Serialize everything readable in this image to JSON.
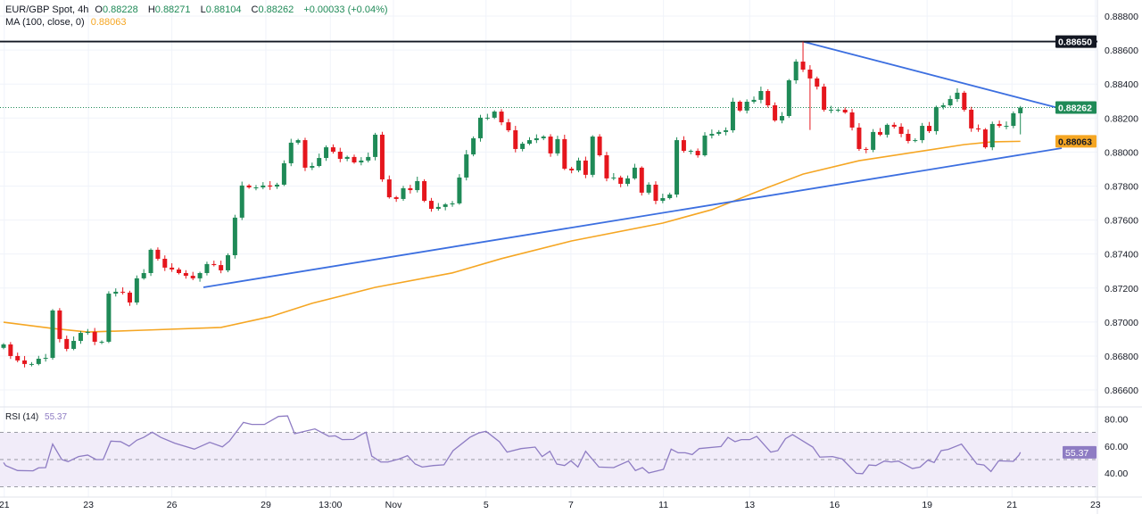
{
  "header": {
    "symbol": "EUR/GBP Spot, 4h",
    "open_label": "O",
    "open": "0.88228",
    "high_label": "H",
    "high": "0.88271",
    "low_label": "L",
    "low": "0.88104",
    "close_label": "C",
    "close": "0.88262",
    "change": "+0.00033 (+0.04%)",
    "ma_label": "MA (100, close, 0)",
    "ma_value": "0.88063",
    "rsi_label": "RSI (14)",
    "rsi_value": "55.37"
  },
  "colors": {
    "up": "#1f8a57",
    "down": "#e5161d",
    "ma": "#f5a623",
    "trendline": "#3c6fe0",
    "resistance": "#131722",
    "rsi": "#8e7cc3",
    "rsi_band": "#f1ecf9",
    "last_price": "#1f8a57"
  },
  "chart_data": [
    {
      "type": "candlestick",
      "title": "EUR/GBP Spot, 4h",
      "ylim": [
        0.865,
        0.8891
      ],
      "y_ticks": [
        "0.88800",
        "0.88600",
        "0.88400",
        "0.88200",
        "0.88000",
        "0.87800",
        "0.87600",
        "0.87400",
        "0.87200",
        "0.87000",
        "0.86800",
        "0.86600"
      ],
      "x_ticks": [
        {
          "label": "21",
          "index": 0.1
        },
        {
          "label": "23",
          "index": 12.1
        },
        {
          "label": "26",
          "index": 24.0
        },
        {
          "label": "29",
          "index": 37.4
        },
        {
          "label": "13:00",
          "index": 46.6
        },
        {
          "label": "Nov",
          "index": 55.6
        },
        {
          "label": "5",
          "index": 68.8
        },
        {
          "label": "7",
          "index": 80.9
        },
        {
          "label": "11",
          "index": 94.1
        },
        {
          "label": "13",
          "index": 106.4
        },
        {
          "label": "16",
          "index": 118.5
        },
        {
          "label": "19",
          "index": 131.7
        },
        {
          "label": "21",
          "index": 143.8
        },
        {
          "label": "23",
          "index": 155.7
        }
      ],
      "grid": true,
      "close": [
        0.86868,
        0.868,
        0.86774,
        0.86753,
        0.86753,
        0.86784,
        0.86789,
        0.87068,
        0.869,
        0.86842,
        0.86889,
        0.86936,
        0.86942,
        0.86884,
        0.86884,
        0.87167,
        0.87178,
        0.87173,
        0.87115,
        0.87257,
        0.87288,
        0.87425,
        0.87372,
        0.8732,
        0.87309,
        0.87288,
        0.87272,
        0.87257,
        0.87288,
        0.87341,
        0.87335,
        0.87304,
        0.87393,
        0.87614,
        0.87803,
        0.87792,
        0.87792,
        0.87803,
        0.87797,
        0.87808,
        0.87934,
        0.88055,
        0.8807,
        0.87908,
        0.87918,
        0.87965,
        0.88028,
        0.88002,
        0.8796,
        0.87971,
        0.87939,
        0.8795,
        0.87971,
        0.88102,
        0.87839,
        0.87734,
        0.87724,
        0.87787,
        0.87776,
        0.87829,
        0.87713,
        0.87666,
        0.87677,
        0.87692,
        0.87698,
        0.8785,
        0.87986,
        0.88081,
        0.88202,
        0.88202,
        0.88238,
        0.88175,
        0.88128,
        0.88018,
        0.88049,
        0.8807,
        0.88081,
        0.88091,
        0.87992,
        0.88076,
        0.87902,
        0.87892,
        0.8795,
        0.87866,
        0.88091,
        0.87981,
        0.87845,
        0.8785,
        0.87813,
        0.87845,
        0.87908,
        0.87761,
        0.87808,
        0.87713,
        0.87729,
        0.8775,
        0.8807,
        0.88007,
        0.88007,
        0.87981,
        0.88097,
        0.88107,
        0.88118,
        0.88128,
        0.88296,
        0.88244,
        0.88296,
        0.88307,
        0.88359,
        0.88275,
        0.88186,
        0.88212,
        0.88422,
        0.88532,
        0.88485,
        0.88433,
        0.88385,
        0.88249,
        0.88249,
        0.88249,
        0.88233,
        0.88144,
        0.88018,
        0.88013,
        0.88118,
        0.88102,
        0.8816,
        0.88149,
        0.88107,
        0.88065,
        0.8807,
        0.88154,
        0.88123,
        0.88265,
        0.88275,
        0.88312,
        0.88349,
        0.88249,
        0.88139,
        0.88133,
        0.88028,
        0.88165,
        0.88154,
        0.88154,
        0.88228,
        0.88262
      ],
      "last_candle": {
        "open": 0.88228,
        "high": 0.88271,
        "low": 0.88104,
        "close": 0.88262
      },
      "extremes": [
        {
          "index": 114,
          "high": 0.8865
        },
        {
          "index": 115,
          "low": 0.8813
        }
      ],
      "ma_100": [
        [
          0,
          0.86999
        ],
        [
          7,
          0.86962
        ],
        [
          12,
          0.86941
        ],
        [
          20,
          0.86952
        ],
        [
          31,
          0.86968
        ],
        [
          38,
          0.87031
        ],
        [
          44,
          0.8711
        ],
        [
          53,
          0.87204
        ],
        [
          64,
          0.87289
        ],
        [
          71,
          0.87373
        ],
        [
          81,
          0.87477
        ],
        [
          94,
          0.87582
        ],
        [
          101,
          0.87661
        ],
        [
          109,
          0.87792
        ],
        [
          114,
          0.8787
        ],
        [
          122,
          0.87949
        ],
        [
          132,
          0.88012
        ],
        [
          137,
          0.88044
        ],
        [
          141,
          0.8806
        ],
        [
          145,
          0.88063
        ]
      ],
      "horizontal_level": {
        "value": 0.8865,
        "label": "0.88650"
      },
      "trendlines": [
        {
          "from": [
            114,
            0.8865
          ],
          "to": [
            150.9,
            0.88254
          ]
        },
        {
          "from": [
            28.5,
            0.87204
          ],
          "to": [
            150.9,
            0.88023
          ]
        }
      ],
      "price_labels": [
        {
          "value": 0.8865,
          "label": "0.88650",
          "kind": "resistance"
        },
        {
          "value": 0.88262,
          "label": "0.88262",
          "kind": "last_price"
        },
        {
          "value": 0.88063,
          "label": "0.88063",
          "kind": "ma"
        }
      ]
    },
    {
      "type": "line",
      "title": "RSI (14)",
      "ylim": [
        25,
        85
      ],
      "y_ticks": [
        "80.00",
        "60.00",
        "40.00"
      ],
      "bands": {
        "upper": 70,
        "middle": 50,
        "lower": 30
      },
      "last_label": "55.37",
      "rsi": [
        [
          0,
          47.8
        ],
        [
          0.3,
          45.6
        ],
        [
          2,
          41.9
        ],
        [
          4.2,
          41.7
        ],
        [
          5,
          43.9
        ],
        [
          6,
          44.1
        ],
        [
          7,
          61.4
        ],
        [
          8.3,
          50
        ],
        [
          9.2,
          48.5
        ],
        [
          10.7,
          52.2
        ],
        [
          12,
          53.3
        ],
        [
          13.2,
          50
        ],
        [
          14.2,
          50
        ],
        [
          15.3,
          63.6
        ],
        [
          16.7,
          63.2
        ],
        [
          17.9,
          59.9
        ],
        [
          19,
          64.3
        ],
        [
          20,
          66.4
        ],
        [
          21.2,
          70.2
        ],
        [
          22.4,
          66.4
        ],
        [
          24.4,
          62.1
        ],
        [
          27.2,
          57.7
        ],
        [
          29.4,
          62.7
        ],
        [
          31.2,
          59.4
        ],
        [
          32.2,
          63.6
        ],
        [
          34.2,
          77.4
        ],
        [
          35.4,
          75.9
        ],
        [
          37.2,
          75.9
        ],
        [
          39.2,
          81.8
        ],
        [
          40.5,
          82.2
        ],
        [
          41.5,
          69.1
        ],
        [
          44.4,
          72.6
        ],
        [
          46.4,
          67.1
        ],
        [
          47.3,
          67.5
        ],
        [
          48.3,
          64.7
        ],
        [
          49.9,
          64.9
        ],
        [
          51.1,
          68.6
        ],
        [
          51.7,
          70.2
        ],
        [
          52.5,
          52.6
        ],
        [
          53.8,
          48.2
        ],
        [
          54.8,
          48.2
        ],
        [
          56.4,
          50.4
        ],
        [
          57.6,
          52.9
        ],
        [
          58.7,
          46.7
        ],
        [
          59.7,
          44.5
        ],
        [
          61.3,
          45.6
        ],
        [
          62.8,
          46.1
        ],
        [
          64.1,
          56.6
        ],
        [
          66.5,
          66.4
        ],
        [
          67.8,
          69.7
        ],
        [
          68.8,
          70.8
        ],
        [
          70.7,
          63.2
        ],
        [
          71.8,
          55.5
        ],
        [
          73.8,
          58.1
        ],
        [
          75.8,
          59.2
        ],
        [
          76.8,
          52.2
        ],
        [
          77.9,
          56.1
        ],
        [
          78.9,
          46.7
        ],
        [
          80,
          45.6
        ],
        [
          80.9,
          49.1
        ],
        [
          81.9,
          44.5
        ],
        [
          83,
          56.1
        ],
        [
          84.9,
          44.5
        ],
        [
          87,
          44.1
        ],
        [
          89.1,
          48.9
        ],
        [
          90.1,
          41.9
        ],
        [
          91.1,
          44.1
        ],
        [
          92,
          40.1
        ],
        [
          94.1,
          42.8
        ],
        [
          95.2,
          57.7
        ],
        [
          96.2,
          55.0
        ],
        [
          97.2,
          55.0
        ],
        [
          98.2,
          53.7
        ],
        [
          99.2,
          58.1
        ],
        [
          102.3,
          59.6
        ],
        [
          103.3,
          66.4
        ],
        [
          104.3,
          63.2
        ],
        [
          105.2,
          64.7
        ],
        [
          106.4,
          64.7
        ],
        [
          107.4,
          67.1
        ],
        [
          109.4,
          55.5
        ],
        [
          110.4,
          56.6
        ],
        [
          111.5,
          65.4
        ],
        [
          112.5,
          68.4
        ],
        [
          115.4,
          59.2
        ],
        [
          116.4,
          51.8
        ],
        [
          118.2,
          52.2
        ],
        [
          119.6,
          50.4
        ],
        [
          121.6,
          39.9
        ],
        [
          122.5,
          39.6
        ],
        [
          123.4,
          46.0
        ],
        [
          124.4,
          45.6
        ],
        [
          125.6,
          48.9
        ],
        [
          126.6,
          48.2
        ],
        [
          127.6,
          48.9
        ],
        [
          129.6,
          43.4
        ],
        [
          130.7,
          44.5
        ],
        [
          131.8,
          49.6
        ],
        [
          132.7,
          47.8
        ],
        [
          133.7,
          56.6
        ],
        [
          134.7,
          57.5
        ],
        [
          136.6,
          61.4
        ],
        [
          138.8,
          46.7
        ],
        [
          139.8,
          46.0
        ],
        [
          140.8,
          41.2
        ],
        [
          141.9,
          49.1
        ],
        [
          144,
          48.7
        ],
        [
          144.8,
          53.3
        ],
        [
          145,
          55.37
        ]
      ]
    }
  ]
}
